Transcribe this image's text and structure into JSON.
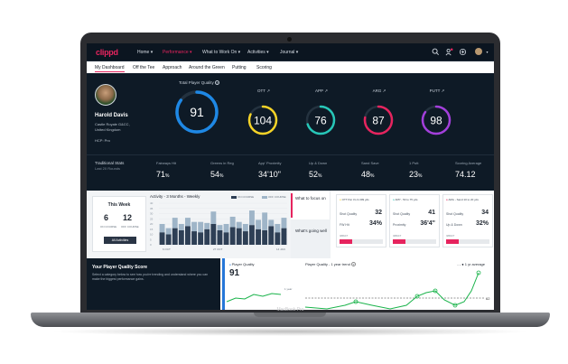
{
  "device": {
    "label": "MacBook Pro"
  },
  "nav": {
    "logo": "clippd",
    "items": [
      {
        "label": "Home ▾",
        "active": false
      },
      {
        "label": "Performance ▾",
        "active": true
      },
      {
        "label": "What to Work On ▾",
        "active": false
      },
      {
        "label": "Activities ▾",
        "active": false
      },
      {
        "label": "Journal ▾",
        "active": false
      }
    ],
    "icons": [
      "search-icon",
      "notification-icon",
      "settings-icon",
      "avatar"
    ]
  },
  "subnav": {
    "items": [
      "My Dashboard",
      "Off the Tee",
      "Approach",
      "Around the Green",
      "Putting",
      "Scoring"
    ],
    "active_index": 0
  },
  "player": {
    "name": "Harold Davis",
    "club_line1": "Castle Royale G&CC,",
    "club_line2": "United Kingdom",
    "hcp": "HCP: Pro"
  },
  "quality": {
    "total_label": "Total Player Quality",
    "total_value": "91",
    "total_color": "#1e88e5",
    "rings": [
      {
        "label": "OTT ↗",
        "value": "104",
        "color": "#f5d327",
        "fill": 0.82
      },
      {
        "label": "APP ↗",
        "value": "76",
        "color": "#27c7b8",
        "fill": 0.7
      },
      {
        "label": "ARG ↗",
        "value": "87",
        "color": "#e6245e",
        "fill": 0.78
      },
      {
        "label": "PUTT ↗",
        "value": "98",
        "color": "#a33fdb",
        "fill": 0.85
      }
    ],
    "total_fill": 0.85
  },
  "traditional": {
    "title": "Traditional Stats",
    "subtitle": "Last 20 Rounds",
    "stats": [
      {
        "label": "Fairways Hit",
        "value": "71",
        "unit": "%"
      },
      {
        "label": "Greens in Reg",
        "value": "54",
        "unit": "%"
      },
      {
        "label": "App' Proximity",
        "value": "34'10\"",
        "unit": ""
      },
      {
        "label": "Up & Down",
        "value": "52",
        "unit": "%"
      },
      {
        "label": "Sand Save",
        "value": "48",
        "unit": "%"
      },
      {
        "label": "1 Putt",
        "value": "23",
        "unit": "%"
      },
      {
        "label": "Scoring Average",
        "value": "74.12",
        "unit": ""
      }
    ]
  },
  "this_week": {
    "title": "This Week",
    "left_num": "6",
    "left_label": "ON COURSE",
    "right_num": "12",
    "right_label": "OFF COURSE",
    "button": "All Activities"
  },
  "activity": {
    "title": "Activity - 3 Months - Weekly",
    "legend_on": "ON COURSE",
    "legend_off": "OFF COURSE",
    "x_labels": [
      "6 OCT",
      "27 OCT",
      "14 JAN"
    ],
    "y_ticks": [
      "40",
      "35",
      "30",
      "25",
      "20",
      "15",
      "10",
      "5",
      "0"
    ],
    "colors": {
      "on": "#2e3f55",
      "off": "#9fb5c8"
    }
  },
  "focus": {
    "title": "What to focus on",
    "going_well": "What's going well",
    "cards": [
      {
        "head": "OTT Par 4's 0-399 yds",
        "dot": "#f5d327",
        "row1_label": "Shot Quality",
        "row1_value": "32",
        "row2_label": "FW Hit",
        "row2_value": "34%",
        "impact": "IMPACT",
        "impact_fill": 0.3
      },
      {
        "head": "APP - 50 to 75 yds",
        "dot": "#27c7b8",
        "row1_label": "Shot Quality",
        "row1_value": "41",
        "row2_label": "Proximity",
        "row2_value": "36'4\"",
        "impact": "IMPACT",
        "impact_fill": 0.3
      },
      {
        "head": "ARG - Sand 10 to 20 yds",
        "dot": "#e6245e",
        "row1_label": "Shot Quality",
        "row1_value": "34",
        "row2_label": "Up & Down",
        "row2_value": "32%",
        "impact": "IMPACT",
        "impact_fill": 0.3
      }
    ]
  },
  "pqs": {
    "title": "Your Player Quality Score",
    "desc": "Select a category below to see how you're trending and understand where you can make the biggest performance gains."
  },
  "pq_card": {
    "title": "Player Quality",
    "value": "91",
    "period": "1 year",
    "color": "#2677d8"
  },
  "trend": {
    "title": "Player Quality - 1 year trend",
    "legend": "1 yr average",
    "avg_label": "62",
    "color": "#19b34a"
  }
}
